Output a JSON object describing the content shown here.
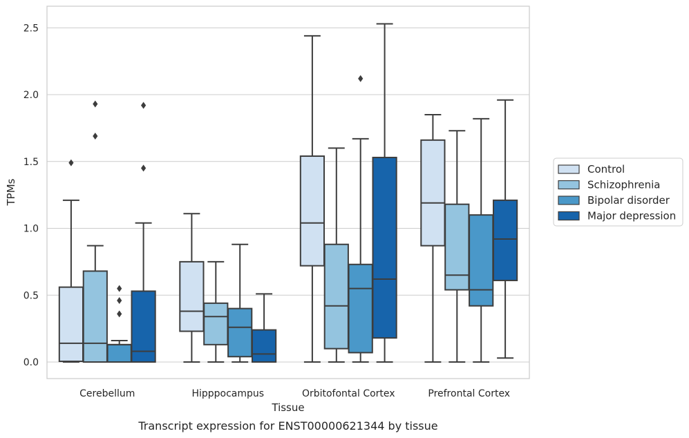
{
  "chart_data": {
    "type": "box",
    "title": "",
    "caption": "Transcript expression for ENST00000621344 by tissue",
    "xlabel": "Tissue",
    "ylabel": "TPMs",
    "ylim": [
      -0.12,
      2.66
    ],
    "yticks": [
      "0.0",
      "0.5",
      "1.0",
      "1.5",
      "2.0",
      "2.5"
    ],
    "grid": true,
    "legend_position": "right",
    "categories": [
      "Cerebellum",
      "Hipppocampus",
      "Orbitofontal Cortex",
      "Prefrontal Cortex"
    ],
    "series": [
      {
        "name": "Control",
        "color": "#d0e1f2",
        "boxes": [
          {
            "whisker_low": 0.0,
            "q1": 0.005,
            "median": 0.14,
            "q3": 0.56,
            "whisker_high": 1.21,
            "outliers": [
              1.49
            ]
          },
          {
            "whisker_low": 0.0,
            "q1": 0.23,
            "median": 0.38,
            "q3": 0.75,
            "whisker_high": 1.11,
            "outliers": []
          },
          {
            "whisker_low": 0.0,
            "q1": 0.72,
            "median": 1.04,
            "q3": 1.54,
            "whisker_high": 2.44,
            "outliers": []
          },
          {
            "whisker_low": 0.0,
            "q1": 0.87,
            "median": 1.19,
            "q3": 1.66,
            "whisker_high": 1.85,
            "outliers": []
          }
        ]
      },
      {
        "name": "Schizophrenia",
        "color": "#94c4df",
        "boxes": [
          {
            "whisker_low": 0.0,
            "q1": 0.0,
            "median": 0.14,
            "q3": 0.68,
            "whisker_high": 0.87,
            "outliers": [
              1.69,
              1.93
            ]
          },
          {
            "whisker_low": 0.0,
            "q1": 0.13,
            "median": 0.34,
            "q3": 0.44,
            "whisker_high": 0.75,
            "outliers": []
          },
          {
            "whisker_low": 0.0,
            "q1": 0.1,
            "median": 0.42,
            "q3": 0.88,
            "whisker_high": 1.6,
            "outliers": []
          },
          {
            "whisker_low": 0.0,
            "q1": 0.54,
            "median": 0.65,
            "q3": 1.18,
            "whisker_high": 1.73,
            "outliers": []
          }
        ]
      },
      {
        "name": "Bipolar disorder",
        "color": "#4a98c9",
        "boxes": [
          {
            "whisker_low": 0.0,
            "q1": 0.0,
            "median": 0.13,
            "q3": 0.13,
            "whisker_high": 0.16,
            "outliers": [
              0.36,
              0.46,
              0.55
            ]
          },
          {
            "whisker_low": 0.0,
            "q1": 0.04,
            "median": 0.26,
            "q3": 0.4,
            "whisker_high": 0.88,
            "outliers": []
          },
          {
            "whisker_low": 0.0,
            "q1": 0.07,
            "median": 0.55,
            "q3": 0.73,
            "whisker_high": 1.67,
            "outliers": [
              2.12
            ]
          },
          {
            "whisker_low": 0.0,
            "q1": 0.42,
            "median": 0.54,
            "q3": 1.1,
            "whisker_high": 1.82,
            "outliers": []
          }
        ]
      },
      {
        "name": "Major depression",
        "color": "#1764ab",
        "boxes": [
          {
            "whisker_low": 0.0,
            "q1": 0.0,
            "median": 0.08,
            "q3": 0.53,
            "whisker_high": 1.04,
            "outliers": [
              1.45,
              1.92
            ]
          },
          {
            "whisker_low": 0.0,
            "q1": 0.0,
            "median": 0.06,
            "q3": 0.24,
            "whisker_high": 0.51,
            "outliers": []
          },
          {
            "whisker_low": 0.0,
            "q1": 0.18,
            "median": 0.62,
            "q3": 1.53,
            "whisker_high": 2.53,
            "outliers": []
          },
          {
            "whisker_low": 0.03,
            "q1": 0.61,
            "median": 0.92,
            "q3": 1.21,
            "whisker_high": 1.96,
            "outliers": []
          }
        ]
      }
    ]
  }
}
